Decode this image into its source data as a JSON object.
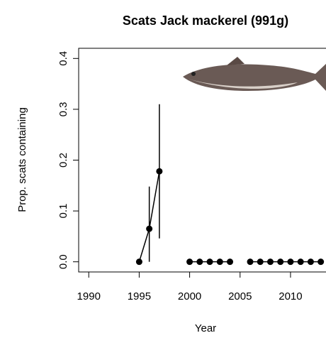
{
  "chart_data": {
    "type": "line",
    "title": "Scats Jack mackerel (991g)",
    "x_label": "Year",
    "y_label": "Prop. scats containing",
    "x": [
      1995,
      1996,
      1997,
      1998,
      1999,
      2000,
      2001,
      2002,
      2003,
      2004,
      2005,
      2006,
      2007,
      2008,
      2009,
      2010,
      2011,
      2012,
      2013
    ],
    "values": [
      0,
      0.065,
      0.178,
      null,
      null,
      0,
      0,
      0,
      0,
      0,
      null,
      0,
      0,
      0,
      0,
      0,
      0,
      0,
      0
    ],
    "error_low": [
      null,
      0.0,
      0.046,
      null,
      null,
      null,
      null,
      null,
      null,
      null,
      null,
      null,
      null,
      null,
      null,
      null,
      null,
      null,
      null
    ],
    "error_high": [
      null,
      0.148,
      0.31,
      null,
      null,
      null,
      null,
      null,
      null,
      null,
      null,
      null,
      null,
      null,
      null,
      null,
      null,
      null,
      null
    ],
    "color": "#000000",
    "xlim": [
      1989,
      2014.5
    ],
    "xticks": [
      1990,
      1995,
      2000,
      2005,
      2010
    ],
    "ylim": [
      -0.02,
      0.42
    ],
    "yticks": [
      {
        "value": 0,
        "label": "0.0"
      },
      0.1,
      0.2,
      0.3,
      0.4
    ]
  }
}
